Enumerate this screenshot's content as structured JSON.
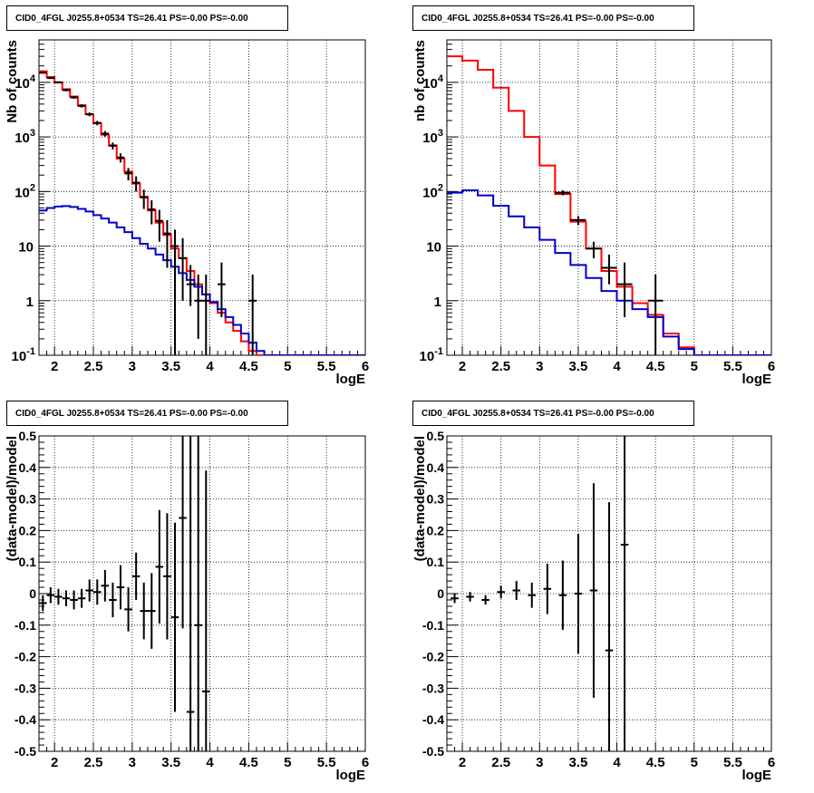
{
  "chart_data": [
    {
      "type": "line",
      "title": "CID0_4FGL J0255.8+0534 TS=26.41 PS=-0.00 PS=-0.00",
      "xlabel": "logE",
      "ylabel": "Nb of counts",
      "xlim": [
        1.8,
        6.0
      ],
      "ylim": [
        0.1,
        60000
      ],
      "yscale": "log",
      "grid": true,
      "xticks": [
        "2",
        "2.5",
        "3",
        "3.5",
        "4",
        "4.5",
        "5",
        "5.5",
        "6"
      ],
      "yticks": [
        "10^-1",
        "1",
        "10",
        "10^2",
        "10^3",
        "10^4"
      ],
      "bin_edges": [
        1.8,
        1.9,
        2.0,
        2.1,
        2.2,
        2.3,
        2.4,
        2.5,
        2.6,
        2.7,
        2.8,
        2.9,
        3.0,
        3.1,
        3.2,
        3.3,
        3.4,
        3.5,
        3.6,
        3.7,
        3.8,
        3.9,
        4.0,
        4.1,
        4.2,
        4.3,
        4.4,
        4.5,
        4.6,
        4.7,
        4.8,
        4.9,
        5.0,
        5.1,
        5.2,
        5.3,
        5.4,
        5.5,
        5.6,
        5.7,
        5.8,
        5.9,
        6.0
      ],
      "series": [
        {
          "color": "#ff0000",
          "kind": "step",
          "values": [
            16000,
            12500,
            10000,
            7500,
            5500,
            3800,
            2600,
            1800,
            1100,
            700,
            400,
            230,
            140,
            80,
            45,
            27,
            16,
            9,
            6,
            3.5,
            2.0,
            1.3,
            0.9,
            0.6,
            0.4,
            0.28,
            0.18,
            0.12,
            0.1,
            0.1,
            0.1,
            0.1,
            0.1,
            0.1,
            0.1,
            0.1,
            0.1,
            0.1,
            0.1,
            0.1,
            0.1,
            0.1
          ]
        },
        {
          "color": "#0000cc",
          "kind": "step",
          "values": [
            45,
            50,
            53,
            54,
            52,
            48,
            43,
            37,
            32,
            27,
            22,
            18,
            14,
            11,
            9,
            7,
            5.5,
            4.2,
            3.2,
            2.4,
            1.8,
            1.3,
            0.95,
            0.7,
            0.5,
            0.36,
            0.25,
            0.17,
            0.12,
            0.1,
            0.1,
            0.1,
            0.1,
            0.1,
            0.1,
            0.1,
            0.1,
            0.1,
            0.1,
            0.1,
            0.1,
            0.1
          ]
        },
        {
          "color": "#000000",
          "kind": "points",
          "x": [
            1.85,
            1.95,
            2.05,
            2.15,
            2.25,
            2.35,
            2.45,
            2.55,
            2.65,
            2.75,
            2.85,
            2.95,
            3.05,
            3.15,
            3.25,
            3.35,
            3.45,
            3.55,
            3.65,
            3.75,
            3.85,
            3.95,
            4.15,
            4.55
          ],
          "y": [
            15000,
            12000,
            10000,
            7200,
            5300,
            3700,
            2600,
            1800,
            1150,
            690,
            420,
            215,
            145,
            78,
            47,
            29,
            17,
            10,
            6,
            2,
            1,
            1,
            2,
            1
          ],
          "err_lo": [
            500,
            450,
            400,
            350,
            300,
            250,
            210,
            170,
            130,
            100,
            80,
            55,
            45,
            30,
            22,
            17,
            13,
            10,
            5,
            1.2,
            0.8,
            0.9,
            1.5,
            0.92
          ],
          "err_hi": [
            500,
            450,
            400,
            350,
            300,
            250,
            210,
            170,
            130,
            100,
            80,
            55,
            45,
            30,
            22,
            17,
            13,
            10,
            8,
            2.5,
            2,
            2,
            3,
            2
          ]
        }
      ]
    },
    {
      "type": "line",
      "title": "CID0_4FGL J0255.8+0534 TS=26.41 PS=-0.00 PS=-0.00",
      "xlabel": "logE",
      "ylabel": "nb of counts",
      "xlim": [
        1.8,
        6.0
      ],
      "ylim": [
        0.1,
        60000
      ],
      "yscale": "log",
      "grid": true,
      "xticks": [
        "2",
        "2.5",
        "3",
        "3.5",
        "4",
        "4.5",
        "5",
        "5.5",
        "6"
      ],
      "yticks": [
        "10^-1",
        "1",
        "10",
        "10^2",
        "10^3",
        "10^4"
      ],
      "bin_edges": [
        1.8,
        2.0,
        2.2,
        2.4,
        2.6,
        2.8,
        3.0,
        3.2,
        3.4,
        3.6,
        3.8,
        4.0,
        4.2,
        4.4,
        4.6,
        4.8,
        5.0,
        5.2,
        5.4,
        5.6,
        5.8,
        6.0
      ],
      "series": [
        {
          "color": "#ff0000",
          "kind": "step",
          "values": [
            30000,
            25000,
            17000,
            8000,
            3000,
            1000,
            300,
            90,
            28,
            9,
            3.5,
            1.8,
            0.9,
            0.55,
            0.25,
            0.14,
            0.1,
            0.1,
            0.1,
            0.1,
            0.1
          ]
        },
        {
          "color": "#0000cc",
          "kind": "step",
          "values": [
            95,
            105,
            85,
            55,
            35,
            22,
            13,
            7.5,
            4.5,
            2.6,
            1.5,
            1.0,
            0.7,
            0.5,
            0.22,
            0.13,
            0.1,
            0.1,
            0.1,
            0.1,
            0.1
          ]
        },
        {
          "color": "#000000",
          "kind": "points",
          "x": [
            3.3,
            3.5,
            3.7,
            3.9,
            4.1,
            4.5
          ],
          "y": [
            95,
            30,
            9,
            4,
            2,
            1
          ],
          "err_lo": [
            10,
            5.5,
            3,
            2,
            1.5,
            0.92
          ],
          "err_hi": [
            10,
            5.5,
            3,
            3,
            3,
            2
          ]
        }
      ]
    },
    {
      "type": "scatter",
      "title": "CID0_4FGL J0255.8+0534 TS=26.41 PS=-0.00 PS=-0.00",
      "xlabel": "logE",
      "ylabel": "(data-model)/model",
      "xlim": [
        1.8,
        6.0
      ],
      "ylim": [
        -0.5,
        0.5
      ],
      "grid": true,
      "xticks": [
        "2",
        "2.5",
        "3",
        "3.5",
        "4",
        "4.5",
        "5",
        "5.5",
        "6"
      ],
      "yticks": [
        "-0.5",
        "-0.4",
        "-0.3",
        "-0.2",
        "-0.1",
        "0",
        "0.1",
        "0.2",
        "0.3",
        "0.4",
        "0.5"
      ],
      "series": [
        {
          "color": "#000000",
          "x": [
            1.85,
            1.95,
            2.05,
            2.15,
            2.25,
            2.35,
            2.45,
            2.55,
            2.65,
            2.75,
            2.85,
            2.95,
            3.05,
            3.15,
            3.25,
            3.35,
            3.45,
            3.55,
            3.65,
            3.75,
            3.85,
            3.95
          ],
          "y": [
            -0.03,
            -0.005,
            -0.01,
            -0.015,
            -0.02,
            -0.015,
            0.01,
            0.005,
            0.025,
            -0.02,
            0.02,
            -0.05,
            0.055,
            -0.055,
            -0.055,
            0.085,
            0.055,
            -0.075,
            0.24,
            -0.375,
            -0.1,
            -0.31
          ],
          "err": [
            0.025,
            0.025,
            0.025,
            0.025,
            0.03,
            0.03,
            0.035,
            0.04,
            0.05,
            0.055,
            0.07,
            0.07,
            0.075,
            0.09,
            0.12,
            0.18,
            0.2,
            0.3,
            0.35,
            0.9,
            0.9,
            0.7
          ]
        }
      ]
    },
    {
      "type": "scatter",
      "title": "CID0_4FGL J0255.8+0534 TS=26.41 PS=-0.00 PS=-0.00",
      "xlabel": "logE",
      "ylabel": "(data-model)/model",
      "xlim": [
        1.8,
        6.0
      ],
      "ylim": [
        -0.5,
        0.5
      ],
      "grid": true,
      "xticks": [
        "2",
        "2.5",
        "3",
        "3.5",
        "4",
        "4.5",
        "5",
        "5.5",
        "6"
      ],
      "yticks": [
        "-0.5",
        "-0.4",
        "-0.3",
        "-0.2",
        "-0.1",
        "0",
        "0.1",
        "0.2",
        "0.3",
        "0.4",
        "0.5"
      ],
      "series": [
        {
          "color": "#000000",
          "x": [
            1.9,
            2.1,
            2.3,
            2.5,
            2.7,
            2.9,
            3.1,
            3.3,
            3.5,
            3.7,
            3.9,
            4.1
          ],
          "y": [
            -0.015,
            -0.01,
            -0.02,
            0.005,
            0.01,
            -0.005,
            0.015,
            -0.005,
            0.0,
            0.01,
            -0.18,
            0.155
          ],
          "err": [
            0.015,
            0.015,
            0.015,
            0.02,
            0.03,
            0.04,
            0.08,
            0.11,
            0.19,
            0.34,
            0.47,
            0.9
          ]
        }
      ]
    }
  ]
}
